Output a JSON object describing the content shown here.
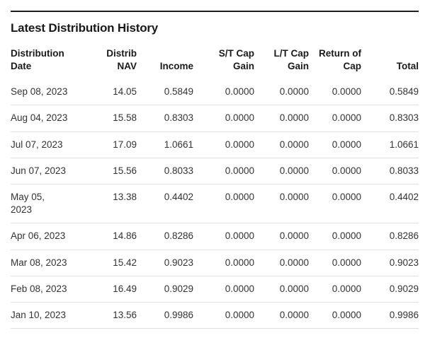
{
  "page": {
    "title": "Latest Distribution History"
  },
  "colors": {
    "title_text": "#1a1a1a",
    "data_text": "#333333",
    "top_rule": "#1f1f1f",
    "row_divider": "#e0e0e0",
    "background": "#ffffff"
  },
  "table": {
    "columns": [
      {
        "l1": "Distribution",
        "l2": "Date"
      },
      {
        "l1": "Distrib",
        "l2": "NAV"
      },
      {
        "l1": "",
        "l2": "Income"
      },
      {
        "l1": "S/T Cap",
        "l2": "Gain"
      },
      {
        "l1": "L/T Cap",
        "l2": "Gain"
      },
      {
        "l1": "Return of",
        "l2": "Cap"
      },
      {
        "l1": "",
        "l2": "Total"
      }
    ],
    "rows": [
      {
        "date_l1": "Sep 08, 2023",
        "date_l2": "",
        "nav": "14.05",
        "income": "0.5849",
        "st_cap_gain": "0.0000",
        "lt_cap_gain": "0.0000",
        "return_of_cap": "0.0000",
        "total": "0.5849"
      },
      {
        "date_l1": "Aug 04, 2023",
        "date_l2": "",
        "nav": "15.58",
        "income": "0.8303",
        "st_cap_gain": "0.0000",
        "lt_cap_gain": "0.0000",
        "return_of_cap": "0.0000",
        "total": "0.8303"
      },
      {
        "date_l1": "Jul 07, 2023",
        "date_l2": "",
        "nav": "17.09",
        "income": "1.0661",
        "st_cap_gain": "0.0000",
        "lt_cap_gain": "0.0000",
        "return_of_cap": "0.0000",
        "total": "1.0661"
      },
      {
        "date_l1": "Jun 07, 2023",
        "date_l2": "",
        "nav": "15.56",
        "income": "0.8033",
        "st_cap_gain": "0.0000",
        "lt_cap_gain": "0.0000",
        "return_of_cap": "0.0000",
        "total": "0.8033"
      },
      {
        "date_l1": "May 05,",
        "date_l2": "2023",
        "nav": "13.38",
        "income": "0.4402",
        "st_cap_gain": "0.0000",
        "lt_cap_gain": "0.0000",
        "return_of_cap": "0.0000",
        "total": "0.4402"
      },
      {
        "date_l1": "Apr 06, 2023",
        "date_l2": "",
        "nav": "14.86",
        "income": "0.8286",
        "st_cap_gain": "0.0000",
        "lt_cap_gain": "0.0000",
        "return_of_cap": "0.0000",
        "total": "0.8286"
      },
      {
        "date_l1": "Mar 08, 2023",
        "date_l2": "",
        "nav": "15.42",
        "income": "0.9023",
        "st_cap_gain": "0.0000",
        "lt_cap_gain": "0.0000",
        "return_of_cap": "0.0000",
        "total": "0.9023"
      },
      {
        "date_l1": "Feb 08, 2023",
        "date_l2": "",
        "nav": "16.49",
        "income": "0.9029",
        "st_cap_gain": "0.0000",
        "lt_cap_gain": "0.0000",
        "return_of_cap": "0.0000",
        "total": "0.9029"
      },
      {
        "date_l1": "Jan 10, 2023",
        "date_l2": "",
        "nav": "13.56",
        "income": "0.9986",
        "st_cap_gain": "0.0000",
        "lt_cap_gain": "0.0000",
        "return_of_cap": "0.0000",
        "total": "0.9986"
      }
    ]
  }
}
